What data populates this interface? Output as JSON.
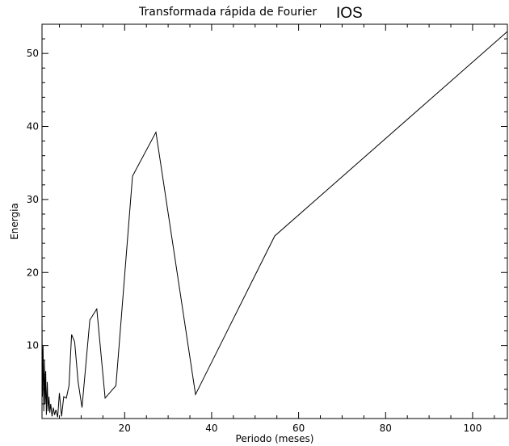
{
  "chart_data": {
    "type": "line",
    "title": "Transformada rápida de Fourier",
    "title_tag": "IOS",
    "xlabel": "Periodo (meses)",
    "ylabel": "Energia",
    "xlim": [
      1,
      108
    ],
    "ylim": [
      0,
      54
    ],
    "xticks": [
      20,
      40,
      60,
      80,
      100
    ],
    "yticks": [
      10,
      20,
      30,
      40,
      50
    ],
    "grid": false,
    "line_color": "#000000",
    "series": [
      {
        "x": [
          1.0,
          1.1,
          1.25,
          1.4,
          1.55,
          1.7,
          1.85,
          2.0,
          2.2,
          2.4,
          2.6,
          2.8,
          3.0,
          3.3,
          3.6,
          3.9,
          4.2,
          4.6,
          5.0,
          5.5,
          6.0,
          6.6,
          7.2,
          7.8,
          8.5,
          9.3,
          10.2,
          12.0,
          13.6,
          15.5,
          18.0,
          21.8,
          27.2,
          36.3,
          54.5,
          108.0
        ],
        "y": [
          14.0,
          3.0,
          10.0,
          1.0,
          8.0,
          2.0,
          6.5,
          0.5,
          5.0,
          1.0,
          3.0,
          0.8,
          2.0,
          0.3,
          1.5,
          0.5,
          1.2,
          0.2,
          3.5,
          0.3,
          3.0,
          2.8,
          4.5,
          11.5,
          10.5,
          5.0,
          1.5,
          13.5,
          15.0,
          2.8,
          4.5,
          33.2,
          39.2,
          3.3,
          25.0,
          53.0
        ]
      }
    ]
  }
}
